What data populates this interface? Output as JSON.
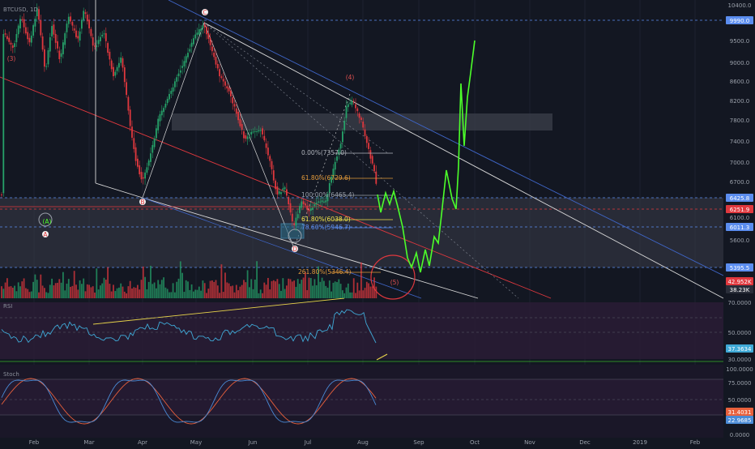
{
  "chart_data": {
    "type": "candlestick",
    "title": "BTCUSD, 1D",
    "x_axis": {
      "tick_labels": [
        "Feb",
        "Mar",
        "Apr",
        "May",
        "Jun",
        "Jul",
        "Aug",
        "Sep",
        "Oct",
        "Nov",
        "Dec",
        "2019",
        "Feb"
      ]
    },
    "price_panel": {
      "y_axis_labels": [
        "10400.0",
        "9990.0",
        "9500.0",
        "9000.0",
        "8600.0",
        "8200.0",
        "7800.0",
        "7400.0",
        "7000.0",
        "6700.0",
        "6425.8",
        "6251.9",
        "6100.0",
        "6011.3",
        "5600.0",
        "5395.5",
        "5000.0"
      ],
      "horizontal_levels": [
        {
          "value": 9990.0,
          "label": "9990.0",
          "color": "#5b8def"
        },
        {
          "value": 6425.8,
          "label": "6425.8",
          "color": "#5b8def"
        },
        {
          "value": 6251.9,
          "label": "6251.9",
          "color": "#e0383e"
        },
        {
          "value": 6011.3,
          "label": "6011.3",
          "color": "#5b8def"
        },
        {
          "value": 5395.5,
          "label": "5395.5",
          "color": "#5b8def"
        }
      ],
      "fib_levels": [
        {
          "label": "0.00%(7357.0)",
          "color": "#b0b4bc"
        },
        {
          "label": "61.80%(6729.6)",
          "color": "#e39a3a"
        },
        {
          "label": "100.00%(6465.4)",
          "color": "#9aa0aa"
        },
        {
          "label": "61.80%(6038.0)",
          "color": "#f2e44a"
        },
        {
          "label": "78.60%(5946.7)",
          "color": "#5b8def"
        },
        {
          "label": "261.80%(5346.4)",
          "color": "#e39a3a"
        }
      ],
      "wave_labels": [
        "(3)",
        "B",
        "C",
        "A",
        "(4)",
        "D",
        "(5)",
        "(A)"
      ],
      "volume_labels": [
        "42.952K",
        "38.23K"
      ]
    },
    "rsi_panel": {
      "label": "RSI",
      "y_axis_labels": [
        "70.0000",
        "50.0000",
        "37.3634",
        "30.0000"
      ],
      "current_value": "37.3634"
    },
    "stoch_panel": {
      "label": "Stoch",
      "y_axis_labels": [
        "100.0000",
        "75.0000",
        "50.0000",
        "31.4031",
        "22.9685",
        "0.0000"
      ],
      "values": [
        "31.4031",
        "22.9685"
      ]
    },
    "colors": {
      "background": "#131722",
      "up": "#26a269",
      "down": "#e0383e",
      "projection": "#4cff2a",
      "channel_white": "#d9d9d9",
      "channel_blue": "#3f66c9",
      "rsi_line": "#3fa9d6",
      "stoch_k": "#4a8bd6",
      "stoch_d": "#e8603c",
      "zone": "#3a3d48"
    }
  }
}
